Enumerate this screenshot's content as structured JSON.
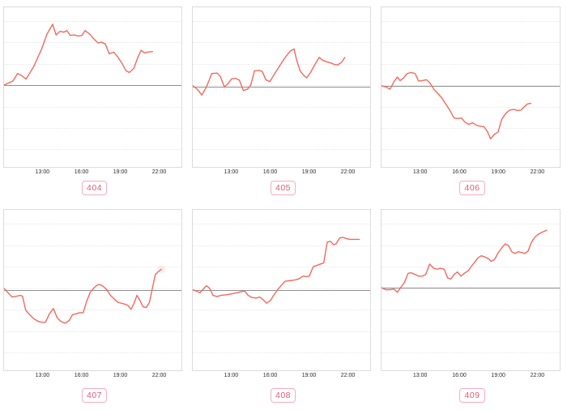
{
  "style": {
    "line_color": "#f4685e",
    "baseline_color": "#909090",
    "grid_color": "#e7e7e7",
    "plot_border_color": "#dcdcdc",
    "tick_label_color": "#2b2b2b",
    "badge_border_color": "#f4adc0",
    "badge_text_color": "#e05a74",
    "halo_color": "rgba(244,104,94,0.12)",
    "background": "#ffffff"
  },
  "x_axis": {
    "labels": [
      "13:00",
      "16:00",
      "19:00",
      "22:00"
    ],
    "positions_pct": [
      21.9,
      43.7,
      65.4,
      87.1
    ]
  },
  "grid_positions_pct": [
    8.6,
    22.0,
    35.4,
    48.8,
    62.2,
    75.6,
    89.0
  ],
  "notes": "Six small-multiple line charts. Y axes are unlabeled; values are relative to the solid gray zero baseline. points_pct are [x%, y%] of the plot area measured from top-left. Micro-titles above some charts are rendered too small to be legible in the source image.",
  "chart_data": [
    {
      "type": "line",
      "badge": "404",
      "micro_title": "",
      "title_clipped": false,
      "title_faint": false,
      "x_ticks": [
        "13:00",
        "16:00",
        "19:00",
        "22:00"
      ],
      "baseline_pct": 48.7,
      "end_halo": false,
      "points_pct": [
        [
          0,
          48.7
        ],
        [
          5,
          46.2
        ],
        [
          7.6,
          41.5
        ],
        [
          9.5,
          42.5
        ],
        [
          12.4,
          44.9
        ],
        [
          16.8,
          37
        ],
        [
          21.2,
          26.1
        ],
        [
          24.2,
          16.8
        ],
        [
          27.4,
          10.6
        ],
        [
          29.3,
          17.3
        ],
        [
          31.5,
          15.1
        ],
        [
          33.7,
          15.6
        ],
        [
          35.4,
          14.6
        ],
        [
          37.3,
          17.6
        ],
        [
          39.5,
          17.3
        ],
        [
          41.7,
          18
        ],
        [
          43.9,
          17.6
        ],
        [
          45.7,
          14.6
        ],
        [
          48.3,
          16.8
        ],
        [
          50.5,
          19.7
        ],
        [
          53,
          22.4
        ],
        [
          54.9,
          21.8
        ],
        [
          57.1,
          23
        ],
        [
          59.3,
          29.1
        ],
        [
          61.8,
          28.1
        ],
        [
          64.1,
          31.1
        ],
        [
          66.6,
          35.3
        ],
        [
          68.8,
          39.8
        ],
        [
          70.6,
          40.8
        ],
        [
          73.2,
          38.2
        ],
        [
          75.4,
          31.4
        ],
        [
          77.3,
          26.9
        ],
        [
          79.1,
          28.6
        ],
        [
          81.3,
          28.1
        ],
        [
          83.7,
          27.7
        ]
      ]
    },
    {
      "type": "line",
      "badge": "405",
      "micro_title": "·· ·····",
      "title_clipped": true,
      "title_faint": false,
      "x_ticks": [
        "13:00",
        "16:00",
        "19:00",
        "22:00"
      ],
      "baseline_pct": 49.6,
      "end_halo": false,
      "points_pct": [
        [
          0,
          49.2
        ],
        [
          2.5,
          51.3
        ],
        [
          5.1,
          55
        ],
        [
          7.7,
          49.9
        ],
        [
          10.7,
          41.5
        ],
        [
          13.7,
          41.2
        ],
        [
          15.5,
          43.2
        ],
        [
          17.8,
          49.9
        ],
        [
          19.9,
          47.9
        ],
        [
          21.8,
          44.9
        ],
        [
          24.1,
          44.5
        ],
        [
          26.3,
          45.7
        ],
        [
          28.5,
          52.1
        ],
        [
          30.8,
          51.3
        ],
        [
          32.7,
          48.7
        ],
        [
          34.8,
          39.8
        ],
        [
          37.1,
          39.5
        ],
        [
          39.2,
          40.2
        ],
        [
          41.2,
          45.4
        ],
        [
          43.4,
          46.6
        ],
        [
          46.4,
          41.2
        ],
        [
          49.3,
          36.1
        ],
        [
          52.3,
          31.1
        ],
        [
          55,
          27.4
        ],
        [
          57.1,
          26.1
        ],
        [
          58.5,
          32.8
        ],
        [
          60.5,
          39.8
        ],
        [
          62.4,
          42.5
        ],
        [
          64.2,
          44.2
        ],
        [
          66.4,
          40.8
        ],
        [
          68.7,
          36.1
        ],
        [
          71.3,
          31.4
        ],
        [
          73.1,
          33.1
        ],
        [
          75.3,
          34.1
        ],
        [
          77.6,
          34.8
        ],
        [
          79.8,
          35.8
        ],
        [
          81.7,
          36.1
        ],
        [
          83.8,
          34.5
        ],
        [
          85.7,
          31.4
        ]
      ]
    },
    {
      "type": "line",
      "badge": "406",
      "micro_title": "· ···",
      "title_clipped": true,
      "title_faint": true,
      "x_ticks": [
        "13:00",
        "16:00",
        "19:00",
        "22:00"
      ],
      "baseline_pct": 49.2,
      "end_halo": false,
      "points_pct": [
        [
          0,
          49.2
        ],
        [
          2.5,
          49.9
        ],
        [
          4.8,
          51.3
        ],
        [
          7,
          46.6
        ],
        [
          8.9,
          43.7
        ],
        [
          10.4,
          45.9
        ],
        [
          12.2,
          44.5
        ],
        [
          14.4,
          41.5
        ],
        [
          16.6,
          40.8
        ],
        [
          18.9,
          41.5
        ],
        [
          20.8,
          46.2
        ],
        [
          22.9,
          45.9
        ],
        [
          25.3,
          45.4
        ],
        [
          27.3,
          47.6
        ],
        [
          29.3,
          51.3
        ],
        [
          31.5,
          53.8
        ],
        [
          33.7,
          56.6
        ],
        [
          36.3,
          61
        ],
        [
          38.6,
          65
        ],
        [
          40.7,
          69.4
        ],
        [
          42.6,
          69.7
        ],
        [
          44.9,
          69.4
        ],
        [
          46.7,
          71.8
        ],
        [
          49,
          73.4
        ],
        [
          51.1,
          72.3
        ],
        [
          53.5,
          74
        ],
        [
          55.6,
          74.5
        ],
        [
          57.5,
          74.8
        ],
        [
          59.4,
          77.8
        ],
        [
          61.2,
          82.4
        ],
        [
          63.4,
          79.5
        ],
        [
          65.4,
          78.2
        ],
        [
          67.5,
          70.1
        ],
        [
          69.8,
          66.4
        ],
        [
          71.9,
          64.4
        ],
        [
          74.3,
          64
        ],
        [
          76.4,
          64.7
        ],
        [
          78.3,
          64.4
        ],
        [
          80.2,
          62.2
        ],
        [
          82,
          60.5
        ],
        [
          83.8,
          60.2
        ]
      ]
    },
    {
      "type": "line",
      "badge": "407",
      "micro_title": "······· ·· ··· ····",
      "title_clipped": false,
      "title_faint": false,
      "x_ticks": [
        "13:00",
        "16:00",
        "19:00",
        "22:00"
      ],
      "baseline_pct": 49.8,
      "end_halo": true,
      "points_pct": [
        [
          0,
          48.9
        ],
        [
          1.8,
          51.1
        ],
        [
          4.5,
          54.3
        ],
        [
          7,
          53.8
        ],
        [
          9.2,
          53.3
        ],
        [
          10.4,
          53.8
        ],
        [
          12.2,
          62.5
        ],
        [
          14.4,
          65.3
        ],
        [
          16.9,
          68
        ],
        [
          19.6,
          69.7
        ],
        [
          21.8,
          70.1
        ],
        [
          23.3,
          70.1
        ],
        [
          25.6,
          64.8
        ],
        [
          27.8,
          61.5
        ],
        [
          30,
          67.4
        ],
        [
          32.2,
          69.7
        ],
        [
          34.5,
          70.6
        ],
        [
          36.7,
          69
        ],
        [
          38.6,
          65.3
        ],
        [
          40.7,
          64.8
        ],
        [
          42.6,
          64.1
        ],
        [
          44.6,
          64.1
        ],
        [
          46.7,
          56.6
        ],
        [
          48.6,
          51.4
        ],
        [
          50.8,
          48.5
        ],
        [
          52.6,
          46.8
        ],
        [
          54.1,
          46.5
        ],
        [
          56,
          47.8
        ],
        [
          58,
          49.8
        ],
        [
          60,
          53.3
        ],
        [
          62.4,
          55.9
        ],
        [
          64.2,
          57.6
        ],
        [
          66,
          58.2
        ],
        [
          67.9,
          58.7
        ],
        [
          69.8,
          59.5
        ],
        [
          71.6,
          62
        ],
        [
          73.4,
          57.9
        ],
        [
          74.9,
          53.3
        ],
        [
          76.4,
          56
        ],
        [
          78.3,
          60.4
        ],
        [
          80.2,
          60.8
        ],
        [
          82,
          57.6
        ],
        [
          83.8,
          47.8
        ],
        [
          85.3,
          40.3
        ],
        [
          86.8,
          38.7
        ],
        [
          88.7,
          37
        ]
      ]
    },
    {
      "type": "line",
      "badge": "408",
      "micro_title": "······· ··· ····",
      "title_clipped": false,
      "title_faint": false,
      "x_ticks": [
        "13:00",
        "16:00",
        "19:00",
        "22:00"
      ],
      "baseline_pct": 49.8,
      "end_halo": false,
      "points_pct": [
        [
          0,
          49.8
        ],
        [
          2.1,
          50.6
        ],
        [
          4,
          51.7
        ],
        [
          5.9,
          49.4
        ],
        [
          7.7,
          47.3
        ],
        [
          9.5,
          48.9
        ],
        [
          11.4,
          53.3
        ],
        [
          13.7,
          54
        ],
        [
          15.9,
          53.3
        ],
        [
          18.1,
          53
        ],
        [
          20.4,
          52.7
        ],
        [
          22.6,
          52.2
        ],
        [
          24.8,
          51.7
        ],
        [
          27,
          51.1
        ],
        [
          29.3,
          50.6
        ],
        [
          31.2,
          53.3
        ],
        [
          33.3,
          54.6
        ],
        [
          35.7,
          55
        ],
        [
          37.7,
          54.3
        ],
        [
          39.7,
          56
        ],
        [
          41.6,
          58.2
        ],
        [
          43.7,
          56.6
        ],
        [
          45.6,
          53.3
        ],
        [
          47.8,
          49.8
        ],
        [
          50.1,
          46.8
        ],
        [
          52,
          44.5
        ],
        [
          54.1,
          44.2
        ],
        [
          56,
          44
        ],
        [
          58,
          43.6
        ],
        [
          60,
          42.9
        ],
        [
          62,
          41.3
        ],
        [
          63.9,
          41.6
        ],
        [
          65.7,
          41.3
        ],
        [
          67.9,
          35.4
        ],
        [
          69.8,
          34.7
        ],
        [
          71.9,
          33.8
        ],
        [
          73.8,
          33.1
        ],
        [
          75.8,
          20.1
        ],
        [
          77.6,
          19.6
        ],
        [
          79.3,
          21.7
        ],
        [
          80.8,
          21.2
        ],
        [
          82.8,
          17.5
        ],
        [
          84.7,
          17.1
        ],
        [
          86.5,
          17.9
        ],
        [
          88.7,
          18.4
        ],
        [
          90.9,
          18.4
        ],
        [
          93.9,
          18.4
        ]
      ]
    },
    {
      "type": "line",
      "badge": "409",
      "micro_title": "··· ····",
      "title_clipped": false,
      "title_faint": true,
      "x_ticks": [
        "13:00",
        "16:00",
        "19:00",
        "22:00"
      ],
      "baseline_pct": 48.5,
      "end_halo": false,
      "points_pct": [
        [
          0,
          48.5
        ],
        [
          2.5,
          49.8
        ],
        [
          4.8,
          49.8
        ],
        [
          7,
          49.4
        ],
        [
          8.9,
          51.4
        ],
        [
          10.7,
          48.5
        ],
        [
          12.9,
          45.2
        ],
        [
          14.9,
          39.6
        ],
        [
          16.6,
          39.2
        ],
        [
          18.9,
          40.3
        ],
        [
          20.8,
          41.3
        ],
        [
          22.9,
          41.3
        ],
        [
          24.8,
          40.3
        ],
        [
          27,
          33.8
        ],
        [
          29.3,
          36.4
        ],
        [
          31.2,
          37
        ],
        [
          33,
          36.4
        ],
        [
          35.2,
          37
        ],
        [
          37.1,
          42.4
        ],
        [
          38.9,
          43.2
        ],
        [
          40.7,
          40.3
        ],
        [
          42.6,
          38.7
        ],
        [
          44.6,
          41.3
        ],
        [
          46.4,
          39.6
        ],
        [
          48.6,
          38
        ],
        [
          50.5,
          35.1
        ],
        [
          52.3,
          32.6
        ],
        [
          54.1,
          29.9
        ],
        [
          56,
          28.6
        ],
        [
          58,
          29.4
        ],
        [
          59.7,
          30.2
        ],
        [
          61.5,
          32.1
        ],
        [
          63.4,
          31
        ],
        [
          65.4,
          26.9
        ],
        [
          67.5,
          23.7
        ],
        [
          69.4,
          21.2
        ],
        [
          71.3,
          22.3
        ],
        [
          73.1,
          26.1
        ],
        [
          74.9,
          27.2
        ],
        [
          76.8,
          26.1
        ],
        [
          78.8,
          26.6
        ],
        [
          80.5,
          27.2
        ],
        [
          82.3,
          25.6
        ],
        [
          84.2,
          20.1
        ],
        [
          86.2,
          16.8
        ],
        [
          88,
          15.2
        ],
        [
          90.2,
          13.9
        ],
        [
          92.7,
          12.7
        ]
      ]
    }
  ]
}
